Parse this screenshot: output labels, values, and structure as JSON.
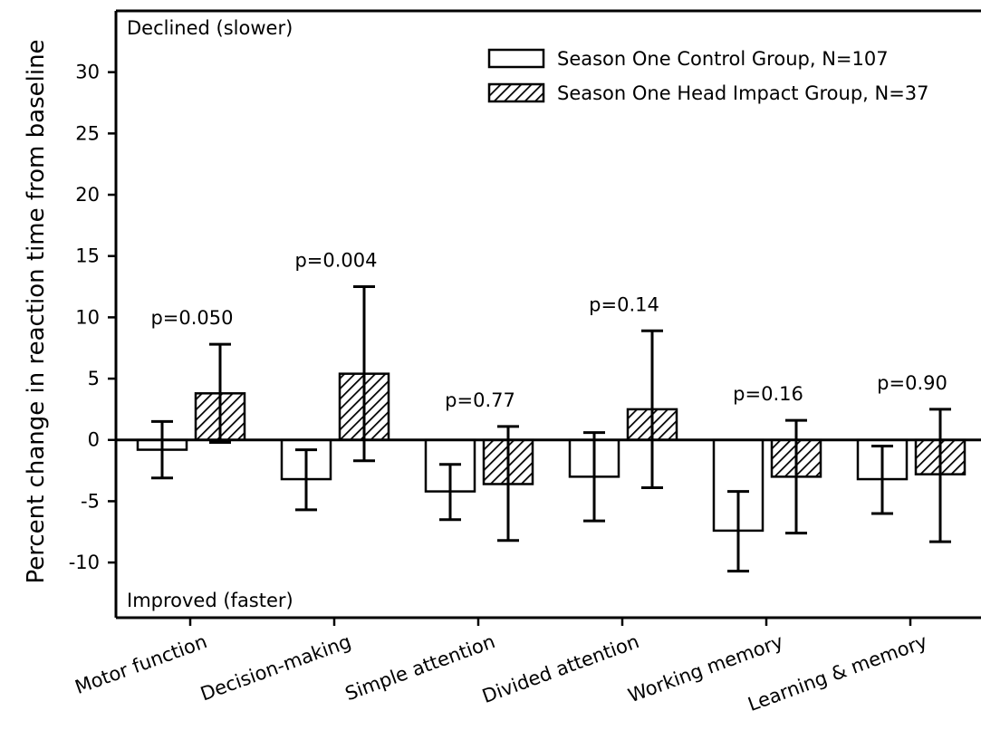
{
  "chart_data": {
    "type": "bar",
    "ylabel": "Percent change in reaction time from baseline",
    "xlabel": "",
    "ylim": [
      -14.5,
      35
    ],
    "yticks": [
      -10,
      -5,
      0,
      5,
      10,
      15,
      20,
      25,
      30
    ],
    "ytick_labels": [
      "-10",
      "-5",
      "0",
      "5",
      "10",
      "15",
      "20",
      "25",
      "30"
    ],
    "categories": [
      "Motor function",
      "Decision-making",
      "Simple attention",
      "Divided attention",
      "Working memory",
      "Learning & memory"
    ],
    "series": [
      {
        "name": "Season One Control Group, N=107",
        "pattern": "open",
        "values": [
          -0.8,
          -3.2,
          -4.2,
          -3.0,
          -7.4,
          -3.2
        ],
        "error_low": [
          -3.1,
          -5.7,
          -6.5,
          -6.6,
          -10.7,
          -6.0
        ],
        "error_high": [
          1.5,
          -0.8,
          -2.0,
          0.6,
          -4.2,
          -0.5
        ]
      },
      {
        "name": "Season One Head Impact Group, N=37",
        "pattern": "hatched",
        "values": [
          3.8,
          5.4,
          -3.6,
          2.5,
          -3.0,
          -2.8
        ],
        "error_low": [
          -0.2,
          -1.7,
          -8.2,
          -3.9,
          -7.6,
          -8.3
        ],
        "error_high": [
          7.8,
          12.5,
          1.1,
          8.9,
          1.6,
          2.5
        ]
      }
    ],
    "annotations": {
      "p_values": [
        "p=0.050",
        "p=0.004",
        "p=0.77",
        "p=0.14",
        "p=0.16",
        "p=0.90"
      ],
      "top_note": "Declined (slower)",
      "bottom_note": "Improved (faster)"
    },
    "legend_placement": "top-right",
    "grid": false,
    "colors": {
      "axis": "#000000",
      "bar_fill": "#ffffff",
      "hatch": "#000000"
    }
  }
}
